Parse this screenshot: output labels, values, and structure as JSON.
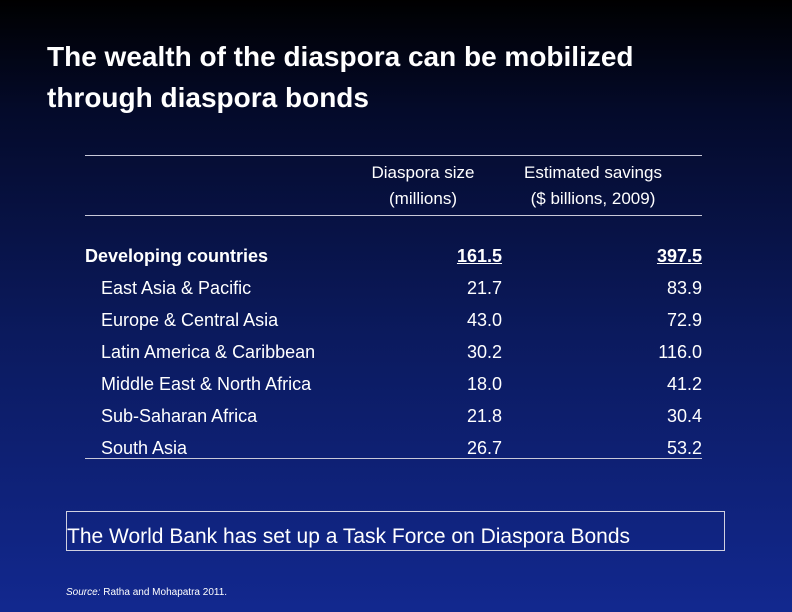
{
  "slide": {
    "title_line1": "The wealth of the diaspora can be mobilized",
    "title_line2": "through diaspora bonds"
  },
  "table": {
    "headers": {
      "size_line1": "Diaspora size",
      "size_line2": "(millions)",
      "savings_line1": "Estimated savings",
      "savings_line2": "($ billions, 2009)"
    },
    "rows": [
      {
        "region": "Developing countries",
        "size": "161.5",
        "savings": "397.5",
        "emphasis": true
      },
      {
        "region": "East Asia & Pacific",
        "size": "21.7",
        "savings": "83.9"
      },
      {
        "region": "Europe & Central Asia",
        "size": "43.0",
        "savings": "72.9"
      },
      {
        "region": "Latin America & Caribbean",
        "size": "30.2",
        "savings": "116.0"
      },
      {
        "region": "Middle East & North Africa",
        "size": "18.0",
        "savings": "41.2"
      },
      {
        "region": "Sub-Saharan Africa",
        "size": "21.8",
        "savings": "30.4"
      },
      {
        "region": "South Asia",
        "size": "26.7",
        "savings": "53.2"
      }
    ]
  },
  "note": {
    "text": "The World Bank has set up a Task Force on Diaspora Bonds"
  },
  "source": {
    "label": "Source:",
    "text": " Ratha and Mohapatra 2011."
  },
  "colors": {
    "background_top": "#000000",
    "background_bottom": "#12288f",
    "text": "#ffffff"
  }
}
